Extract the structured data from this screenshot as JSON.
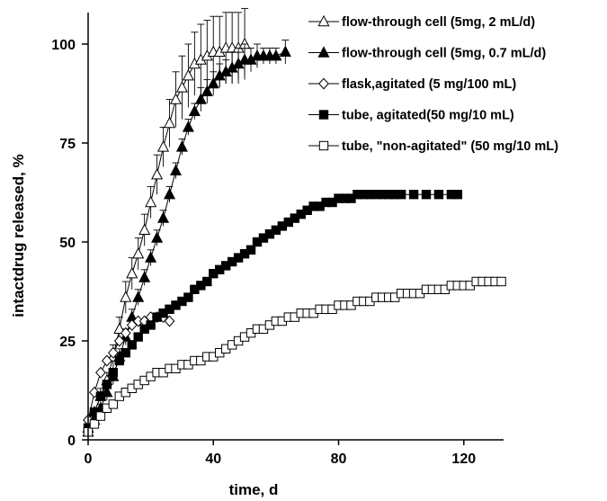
{
  "chart_data": {
    "type": "scatter",
    "title": "",
    "xlabel": "time, d",
    "ylabel": "intactdrug released, %",
    "xlim": [
      0,
      135
    ],
    "ylim": [
      0,
      110
    ],
    "x_ticks": [
      0,
      40,
      80,
      120
    ],
    "y_ticks": [
      0,
      25,
      50,
      75,
      100
    ],
    "grid": false,
    "legend_position": "top-right",
    "series": [
      {
        "name": "flow-through cell (5mg, 2 mL/d)",
        "marker": "triangle-open",
        "x": [
          0,
          2,
          4,
          6,
          8,
          10,
          12,
          14,
          16,
          18,
          20,
          22,
          24,
          26,
          28,
          30,
          32,
          34,
          36,
          38,
          40,
          42,
          44,
          46,
          48,
          50
        ],
        "y": [
          3,
          7,
          11,
          15,
          21,
          28,
          36,
          42,
          47,
          53,
          60,
          67,
          74,
          80,
          86,
          89,
          92,
          95,
          96,
          97,
          98,
          98,
          99,
          99,
          99,
          100
        ],
        "err": [
          1,
          1,
          2,
          2,
          3,
          3,
          4,
          4,
          4,
          4,
          4,
          5,
          5,
          6,
          7,
          8,
          8,
          8,
          9,
          9,
          9,
          9,
          9,
          9,
          9,
          9
        ]
      },
      {
        "name": "flow-through cell (5mg, 0.7 mL/d)",
        "marker": "triangle-filled",
        "x": [
          0,
          2,
          4,
          6,
          8,
          10,
          12,
          14,
          16,
          18,
          20,
          22,
          24,
          26,
          28,
          30,
          32,
          34,
          36,
          38,
          40,
          42,
          44,
          46,
          48,
          50,
          52,
          54,
          56,
          58,
          60,
          63
        ],
        "y": [
          2,
          5,
          8,
          12,
          16,
          21,
          26,
          31,
          36,
          41,
          46,
          51,
          56,
          62,
          68,
          74,
          79,
          83,
          86,
          88,
          90,
          92,
          93,
          94,
          95,
          96,
          96,
          97,
          97,
          97,
          97,
          98
        ],
        "err": [
          1,
          1,
          1,
          2,
          2,
          2,
          2,
          2,
          2,
          2,
          2,
          2,
          2,
          2,
          2,
          2,
          2,
          2,
          3,
          3,
          3,
          3,
          3,
          4,
          4,
          4,
          3,
          3,
          2,
          2,
          2,
          3
        ]
      },
      {
        "name": "flask,agitated  (5 mg/100 mL)",
        "marker": "diamond-open",
        "x": [
          0,
          2,
          4,
          6,
          8,
          10,
          12,
          14,
          16,
          18,
          20,
          22,
          24,
          26
        ],
        "y": [
          5,
          12,
          17,
          20,
          22,
          25,
          27,
          29,
          30,
          30,
          31,
          31,
          31,
          30
        ]
      },
      {
        "name": "tube, agitated(50 mg/10 mL)",
        "marker": "square-filled",
        "x": [
          0,
          2,
          4,
          6,
          8,
          10,
          12,
          14,
          16,
          18,
          20,
          22,
          24,
          26,
          28,
          30,
          32,
          34,
          36,
          38,
          40,
          42,
          44,
          46,
          48,
          50,
          52,
          54,
          56,
          58,
          60,
          62,
          64,
          66,
          68,
          70,
          72,
          74,
          76,
          78,
          80,
          82,
          84,
          86,
          88,
          90,
          92,
          94,
          96,
          98,
          100,
          104,
          108,
          112,
          116,
          118
        ],
        "y": [
          3,
          7,
          11,
          14,
          17,
          20,
          22,
          24,
          26,
          28,
          29,
          31,
          32,
          33,
          34,
          35,
          36,
          38,
          39,
          40,
          42,
          43,
          44,
          45,
          46,
          47,
          48,
          50,
          51,
          52,
          53,
          54,
          55,
          56,
          57,
          58,
          59,
          59,
          60,
          60,
          61,
          61,
          61,
          62,
          62,
          62,
          62,
          62,
          62,
          62,
          62,
          62,
          62,
          62,
          62,
          62
        ]
      },
      {
        "name": "tube, \"non-agitated\" (50 mg/10 mL)",
        "marker": "square-open",
        "x": [
          0,
          2,
          4,
          6,
          8,
          10,
          12,
          14,
          16,
          18,
          20,
          22,
          24,
          26,
          28,
          30,
          32,
          34,
          36,
          38,
          40,
          42,
          44,
          46,
          48,
          50,
          52,
          54,
          56,
          58,
          60,
          62,
          64,
          66,
          68,
          70,
          72,
          74,
          76,
          78,
          80,
          82,
          84,
          86,
          88,
          90,
          92,
          94,
          96,
          98,
          100,
          102,
          104,
          106,
          108,
          110,
          112,
          114,
          116,
          118,
          120,
          122,
          124,
          126,
          128,
          130,
          132
        ],
        "y": [
          2,
          4,
          6,
          8,
          9,
          11,
          12,
          13,
          14,
          15,
          16,
          17,
          17,
          18,
          18,
          19,
          19,
          20,
          20,
          21,
          21,
          22,
          23,
          24,
          25,
          26,
          27,
          28,
          28,
          29,
          30,
          30,
          31,
          31,
          32,
          32,
          32,
          33,
          33,
          33,
          34,
          34,
          34,
          35,
          35,
          35,
          36,
          36,
          36,
          36,
          37,
          37,
          37,
          37,
          38,
          38,
          38,
          38,
          39,
          39,
          39,
          39,
          40,
          40,
          40,
          40,
          40
        ]
      }
    ]
  }
}
